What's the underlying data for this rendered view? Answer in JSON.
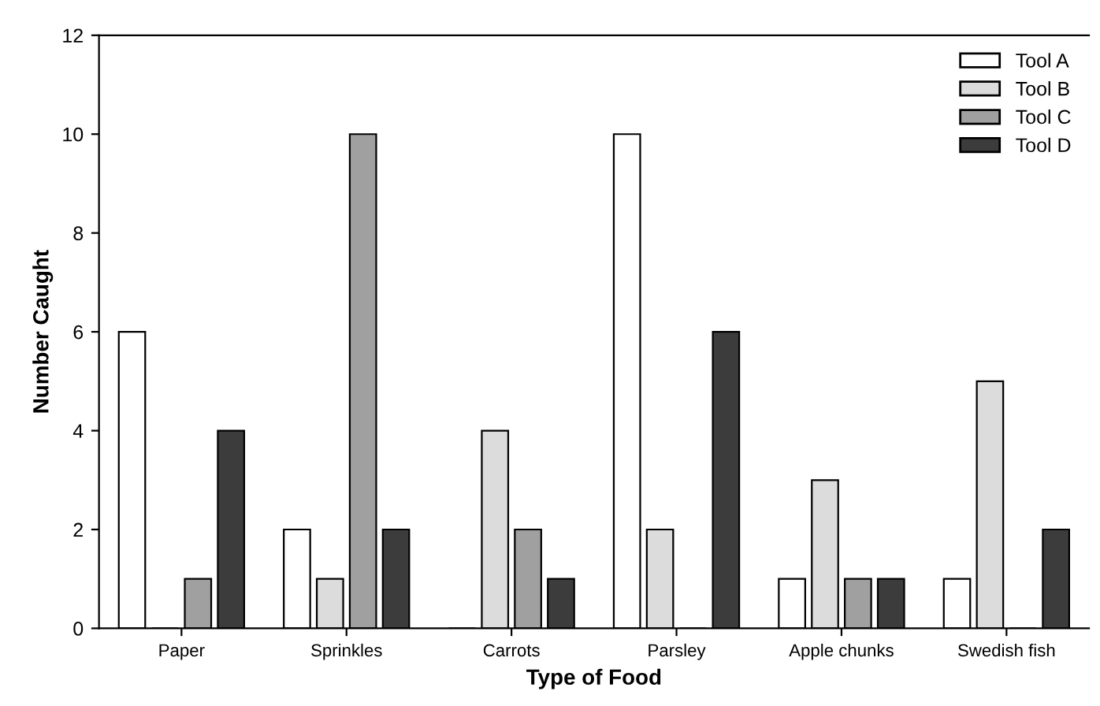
{
  "chart_data": {
    "type": "bar",
    "xlabel": "Type of Food",
    "ylabel": "Number Caught",
    "categories": [
      "Paper",
      "Sprinkles",
      "Carrots",
      "Parsley",
      "Apple chunks",
      "Swedish fish"
    ],
    "series": [
      {
        "name": "Tool A",
        "color": "#ffffff",
        "values": [
          6,
          2,
          0,
          10,
          1,
          1
        ]
      },
      {
        "name": "Tool B",
        "color": "#dcdcdc",
        "values": [
          0,
          1,
          4,
          2,
          3,
          5
        ]
      },
      {
        "name": "Tool C",
        "color": "#a0a0a0",
        "values": [
          1,
          10,
          2,
          0,
          1,
          0
        ]
      },
      {
        "name": "Tool D",
        "color": "#3c3c3c",
        "values": [
          4,
          2,
          1,
          6,
          1,
          2
        ]
      }
    ],
    "ylim": [
      0,
      12
    ],
    "yticks": [
      0,
      2,
      4,
      6,
      8,
      10,
      12
    ],
    "grid": false,
    "legend": "top right"
  }
}
